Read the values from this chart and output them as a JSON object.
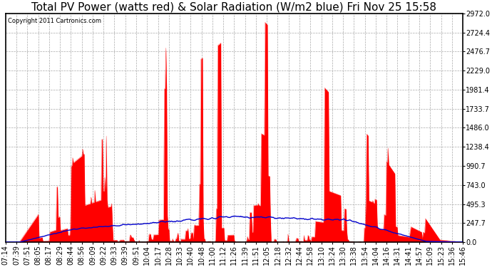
{
  "title": "Total PV Power (watts red) & Solar Radiation (W/m2 blue) Fri Nov 25 15:58",
  "copyright": "Copyright 2011 Cartronics.com",
  "ylabel_right_ticks": [
    0.0,
    247.7,
    495.3,
    743.0,
    990.7,
    1238.4,
    1486.0,
    1733.7,
    1981.4,
    2229.0,
    2476.7,
    2724.4,
    2972.0
  ],
  "xlabels": [
    "07:14",
    "07:39",
    "07:51",
    "08:05",
    "08:17",
    "08:29",
    "08:44",
    "08:56",
    "09:09",
    "09:22",
    "09:33",
    "09:39",
    "09:51",
    "10:04",
    "10:17",
    "10:28",
    "10:33",
    "10:40",
    "10:48",
    "11:00",
    "11:12",
    "11:26",
    "11:39",
    "11:51",
    "12:05",
    "12:18",
    "12:32",
    "12:44",
    "12:58",
    "13:10",
    "13:24",
    "13:30",
    "13:38",
    "13:54",
    "14:04",
    "14:16",
    "14:31",
    "14:41",
    "14:57",
    "15:09",
    "15:23",
    "15:36",
    "15:46"
  ],
  "pv_color": "#ff0000",
  "solar_color": "#0000cc",
  "bg_color": "#ffffff",
  "grid_color": "#aaaaaa",
  "title_fontsize": 11,
  "tick_fontsize": 7,
  "ymax": 2972.0,
  "ymin": 0.0,
  "solar_scale": 247.7,
  "pv_max": 2972.0,
  "border_color": "#000000"
}
